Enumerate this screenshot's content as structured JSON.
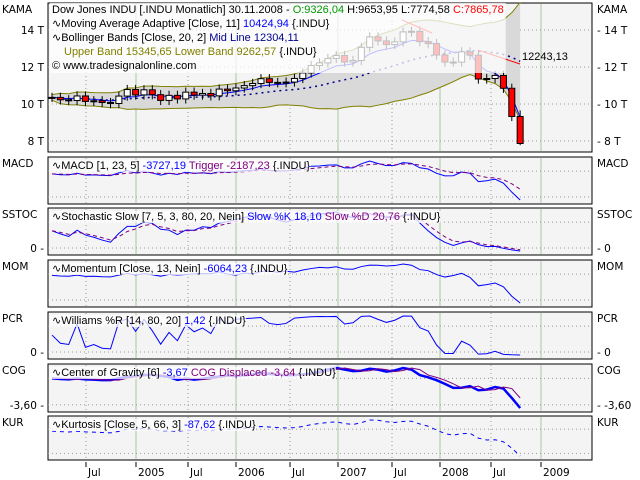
{
  "main": {
    "axis_label": "KAMA",
    "y_ticks": [
      "14 T",
      "12 T",
      "10 T",
      "8 T"
    ],
    "legend": {
      "symbol": "Dow Jones INDU [.INDU  Monatlich] 30.11.2008 -",
      "open": "O:9326,04",
      "high": "H:9653,95",
      "low": "L:7774,58",
      "close": "C:7865,78",
      "kama_name": "Moving Average Adaptive [Close, 11]",
      "kama_value": "10424,94",
      "kama_suffix": "{.INDU}",
      "bb_name": "Bollinger Bands [Close, 20, 2]",
      "bb_mid": "Mid Line 12304,11",
      "bb_upper": "Upper Band 15345,65",
      "bb_lower": "Lower Band 9262,57",
      "bb_suffix": "{.INDU}",
      "copyright": "© www.tradesignalonline.com"
    },
    "trendline_value": "12243,13"
  },
  "panels": [
    {
      "axis": "MACD",
      "name": "MACD [1, 23, 5]",
      "v1": "-3727,19",
      "v2": "Trigger -2187,23",
      "suffix": "{.INDU}",
      "tick": ""
    },
    {
      "axis": "SSTOC",
      "name": "Stochastic Slow [7, 5, 3, 80, 20, Nein]",
      "v1": "Slow %K 18,10",
      "v2": "Slow %D 20,76",
      "suffix": "{.INDU}",
      "tick": "0"
    },
    {
      "axis": "MOM",
      "name": "Momentum [Close, 13, Nein]",
      "v1": "-6064,23",
      "v2": "",
      "suffix": "{.INDU}",
      "tick": ""
    },
    {
      "axis": "PCR",
      "name": "Williams %R [14, 80, 20]",
      "v1": "1,42",
      "v2": "",
      "suffix": "{.INDU}",
      "tick": "0"
    },
    {
      "axis": "COG",
      "name": "Center of Gravity [6]",
      "v1": "-3,67",
      "v2": "COG Displaced -3,64",
      "suffix": "{.INDU}",
      "tick": "-3,60"
    },
    {
      "axis": "KUR",
      "name": "Kurtosis [Close, 5, 66, 3]",
      "v1": "-87,62",
      "v2": "",
      "suffix": "{.INDU}",
      "tick": ""
    }
  ],
  "x_labels": [
    "Jul",
    "2005",
    "Jul",
    "2006",
    "Jul",
    "2007",
    "Jul",
    "2008",
    "Jul",
    "2009"
  ],
  "colors": {
    "up": "#ffffff",
    "down": "#ff0000",
    "kama": "#0000ff",
    "bb_mid": "#00008b",
    "bb_band": "#808000",
    "bb_fill": "#d9d9d9",
    "trigger": "#800080",
    "panel_bg": "#f4f4f4",
    "grid": "#a8c8a0"
  },
  "chart_data": {
    "type": "candlestick",
    "period": "monthly",
    "x_start": "2004-03",
    "y_unit": "thousands",
    "ylim": [
      7.5,
      15
    ],
    "closes": [
      10.357,
      10.226,
      10.188,
      10.435,
      10.14,
      10.174,
      10.08,
      10.027,
      10.428,
      10.783,
      10.49,
      10.766,
      10.504,
      10.193,
      10.467,
      10.275,
      10.641,
      10.482,
      10.569,
      10.44,
      10.806,
      10.718,
      10.865,
      10.993,
      11.109,
      11.367,
      11.168,
      11.15,
      11.186,
      11.381,
      11.679,
      12.081,
      12.222,
      12.463,
      12.622,
      12.269,
      12.354,
      13.063,
      13.628,
      13.409,
      13.212,
      13.358,
      13.896,
      13.93,
      13.372,
      13.265,
      12.65,
      12.266,
      12.263,
      12.82,
      12.638,
      11.35,
      11.378,
      11.544,
      10.851,
      9.326,
      7.866
    ],
    "last_bar": {
      "date": "30.11.2008",
      "open": 9326.04,
      "high": 9653.95,
      "low": 7774.58,
      "close": 7865.78
    }
  }
}
